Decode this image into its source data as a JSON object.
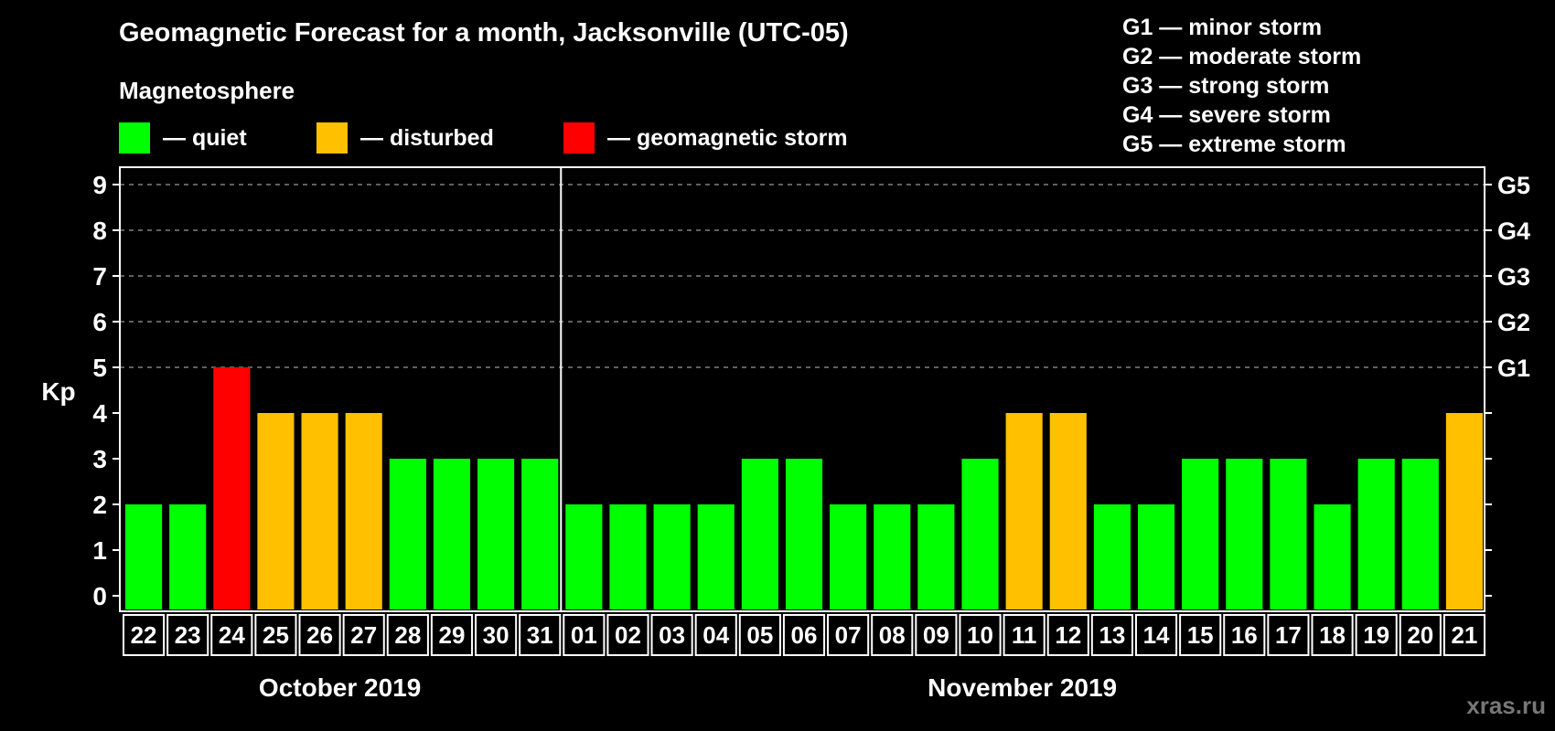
{
  "header": {
    "title": "Geomagnetic Forecast for a month, Jacksonville (UTC-05)",
    "subtitle": "Magnetosphere"
  },
  "legend": [
    {
      "label": "— quiet",
      "color": "#00ff00"
    },
    {
      "label": "— disturbed",
      "color": "#ffc000"
    },
    {
      "label": "— geomagnetic storm",
      "color": "#ff0000"
    }
  ],
  "storm_legend": [
    "G1 — minor storm",
    "G2 — moderate storm",
    "G3 — strong storm",
    "G4 — severe storm",
    "G5 — extreme storm"
  ],
  "watermark": "xras.ru",
  "chart_data": {
    "type": "bar",
    "title": "Geomagnetic Forecast for a month, Jacksonville (UTC-05)",
    "ylabel": "Kp",
    "ylim": [
      0,
      9
    ],
    "yticks": [
      "0",
      "1",
      "2",
      "3",
      "4",
      "5",
      "6",
      "7",
      "8",
      "9"
    ],
    "right_ticks": [
      {
        "kp": 5,
        "label": "G1"
      },
      {
        "kp": 6,
        "label": "G2"
      },
      {
        "kp": 7,
        "label": "G3"
      },
      {
        "kp": 8,
        "label": "G4"
      },
      {
        "kp": 9,
        "label": "G5"
      }
    ],
    "grid": "dashed at Kp 5-9",
    "months": [
      {
        "label": "October 2019",
        "days": 10
      },
      {
        "label": "November 2019",
        "days": 21
      }
    ],
    "categories": [
      "22",
      "23",
      "24",
      "25",
      "26",
      "27",
      "28",
      "29",
      "30",
      "31",
      "01",
      "02",
      "03",
      "04",
      "05",
      "06",
      "07",
      "08",
      "09",
      "10",
      "11",
      "12",
      "13",
      "14",
      "15",
      "16",
      "17",
      "18",
      "19",
      "20",
      "21"
    ],
    "values": [
      2,
      2,
      5,
      4,
      4,
      4,
      3,
      3,
      3,
      3,
      2,
      2,
      2,
      2,
      3,
      3,
      2,
      2,
      2,
      3,
      4,
      4,
      2,
      2,
      3,
      3,
      3,
      2,
      3,
      3,
      4
    ],
    "color_scale": {
      "quiet_max": 3,
      "disturbed": 4,
      "storm_min": 5
    }
  }
}
